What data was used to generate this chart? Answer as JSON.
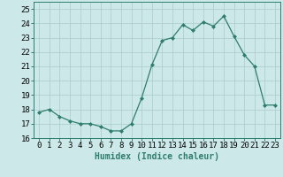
{
  "x": [
    0,
    1,
    2,
    3,
    4,
    5,
    6,
    7,
    8,
    9,
    10,
    11,
    12,
    13,
    14,
    15,
    16,
    17,
    18,
    19,
    20,
    21,
    22,
    23
  ],
  "y": [
    17.8,
    18.0,
    17.5,
    17.2,
    17.0,
    17.0,
    16.8,
    16.5,
    16.5,
    17.0,
    18.8,
    21.1,
    22.8,
    23.0,
    23.9,
    23.5,
    24.1,
    23.8,
    24.5,
    23.1,
    21.8,
    21.0,
    18.3,
    18.3
  ],
  "line_color": "#2e7d6e",
  "marker": "D",
  "marker_size": 2.0,
  "bg_color": "#cce8e8",
  "grid_color": "#b0d0d0",
  "ylim": [
    16,
    25.5
  ],
  "yticks": [
    16,
    17,
    18,
    19,
    20,
    21,
    22,
    23,
    24,
    25
  ],
  "xlabel": "Humidex (Indice chaleur)",
  "xlabel_fontsize": 7,
  "tick_fontsize": 6.5,
  "title_color": "#2e7d6e"
}
